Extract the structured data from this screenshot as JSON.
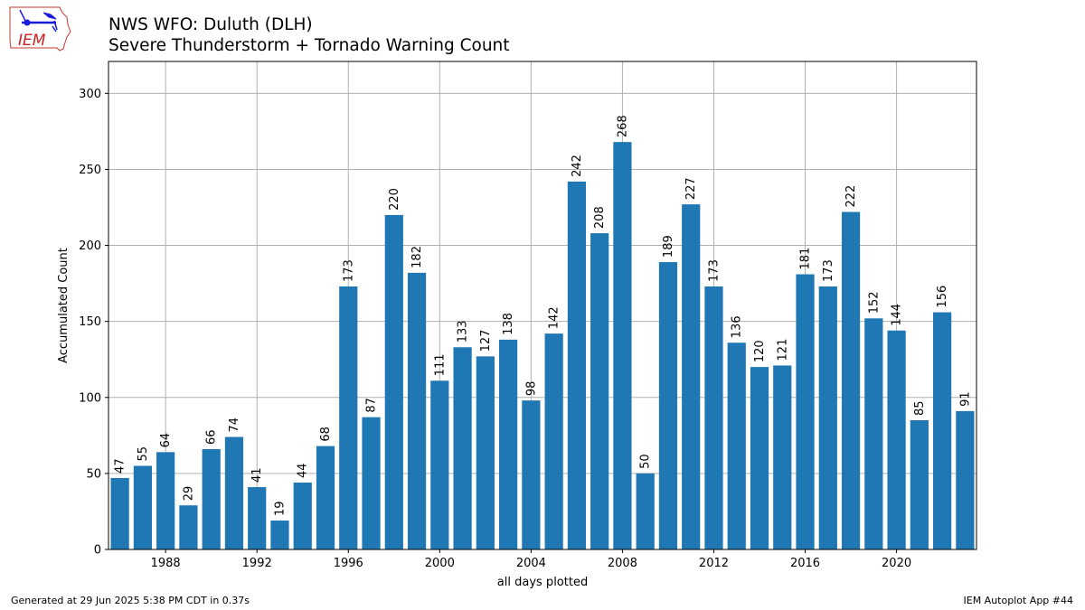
{
  "logo": {
    "text": "IEM"
  },
  "header": {
    "title_line1": "NWS WFO: Duluth (DLH)",
    "title_line2": "Severe Thunderstorm + Tornado Warning Count"
  },
  "footer": {
    "left": "Generated at 29 Jun 2025 5:38 PM CDT in 0.37s",
    "right": "IEM Autoplot App #44"
  },
  "colors": {
    "bar": "#1f77b4",
    "grid": "#b0b0b0",
    "logo_outline": "#c0392b",
    "logo_text": "#cc2222",
    "logo_symbol": "#1a1adb"
  },
  "chart_data": {
    "type": "bar",
    "xlabel": "all days plotted",
    "ylabel": "Accumulated Count",
    "categories": [
      1986,
      1987,
      1988,
      1989,
      1990,
      1991,
      1992,
      1993,
      1994,
      1995,
      1996,
      1997,
      1998,
      1999,
      2000,
      2001,
      2002,
      2003,
      2004,
      2005,
      2006,
      2007,
      2008,
      2009,
      2010,
      2011,
      2012,
      2013,
      2014,
      2015,
      2016,
      2017,
      2018,
      2019,
      2020,
      2021,
      2022,
      2023
    ],
    "values": [
      47,
      55,
      64,
      29,
      66,
      74,
      41,
      19,
      44,
      68,
      173,
      87,
      220,
      182,
      111,
      133,
      127,
      138,
      98,
      142,
      242,
      208,
      268,
      50,
      189,
      227,
      173,
      136,
      120,
      121,
      181,
      173,
      222,
      152,
      144,
      85,
      156,
      91
    ],
    "xlim": [
      1985.5,
      2023.5
    ],
    "ylim": [
      0,
      321
    ],
    "xticks": [
      1988,
      1992,
      1996,
      2000,
      2004,
      2008,
      2012,
      2016,
      2020
    ],
    "yticks": [
      0,
      50,
      100,
      150,
      200,
      250,
      300
    ],
    "grid": true,
    "data_labels": true
  }
}
